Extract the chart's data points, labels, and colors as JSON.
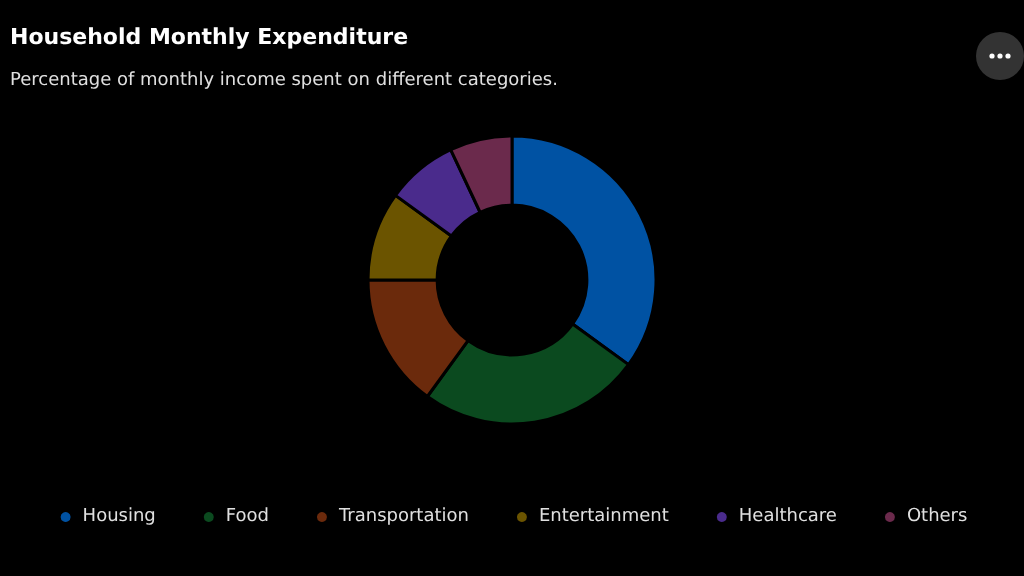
{
  "chart_data": {
    "type": "donut",
    "title": "Household Monthly Expenditure",
    "subtitle": "Percentage of monthly income spent on different categories.",
    "categories": [
      "Housing",
      "Food",
      "Transportation",
      "Entertainment",
      "Healthcare",
      "Others"
    ],
    "values": [
      35,
      25,
      15,
      10,
      8,
      7
    ],
    "colors": [
      "#0052a3",
      "#0b4a1f",
      "#6b2a0c",
      "#6b5400",
      "#4a2b8c",
      "#6b2a4c"
    ],
    "legend": "bottom"
  }
}
